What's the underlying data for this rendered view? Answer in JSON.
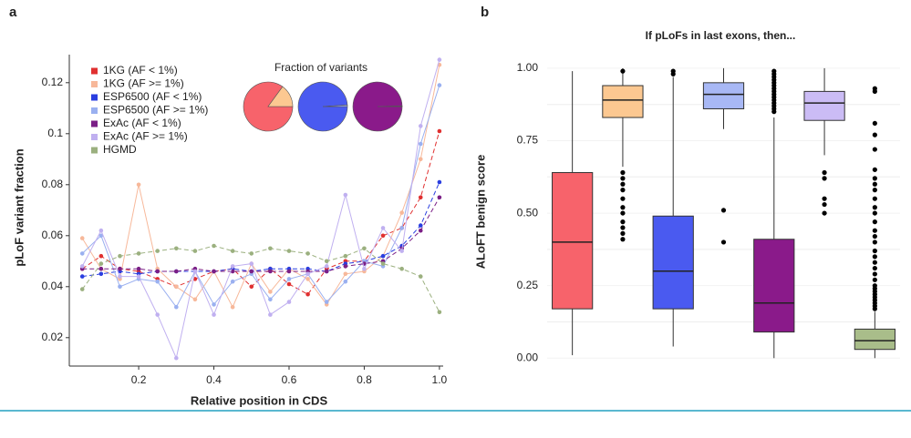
{
  "chart_data": [
    {
      "type": "line",
      "panel": "a",
      "xlabel": "Relative position in CDS",
      "ylabel": "pLoF variant fraction",
      "x": [
        0.05,
        0.1,
        0.15,
        0.2,
        0.25,
        0.3,
        0.35,
        0.4,
        0.45,
        0.5,
        0.55,
        0.6,
        0.65,
        0.7,
        0.75,
        0.8,
        0.85,
        0.9,
        0.95,
        1.0
      ],
      "xlim": [
        0.03,
        1.01
      ],
      "xticks": [
        0.2,
        0.4,
        0.6,
        0.8,
        {
          "value": 1,
          "label": "1.0"
        }
      ],
      "ylim": [
        0.011,
        0.131
      ],
      "yticks": [
        0.02,
        0.04,
        0.06,
        0.08,
        0.1,
        0.12
      ],
      "series": [
        {
          "name": "1KG (AF < 1%)",
          "color": "#e03030",
          "values": [
            0.047,
            0.052,
            0.047,
            0.046,
            0.043,
            0.04,
            0.043,
            0.046,
            0.047,
            0.04,
            0.047,
            0.041,
            0.037,
            0.047,
            0.05,
            0.05,
            0.06,
            0.063,
            0.075,
            0.101
          ]
        },
        {
          "name": "1KG (AF >= 1%)",
          "color": "#f7b89a",
          "values": [
            0.059,
            0.047,
            0.043,
            0.08,
            0.047,
            0.04,
            0.035,
            0.046,
            0.032,
            0.049,
            0.038,
            0.047,
            0.043,
            0.033,
            0.045,
            0.046,
            0.052,
            0.069,
            0.09,
            0.127
          ]
        },
        {
          "name": "ESP6500 (AF < 1%)",
          "color": "#2a3ee0",
          "values": [
            0.044,
            0.045,
            0.046,
            0.045,
            0.046,
            0.046,
            0.046,
            0.046,
            0.047,
            0.046,
            0.047,
            0.047,
            0.047,
            0.046,
            0.049,
            0.05,
            0.052,
            0.056,
            0.064,
            0.081
          ]
        },
        {
          "name": "ESP6500 (AF >= 1%)",
          "color": "#9ab0f0",
          "values": [
            0.053,
            0.06,
            0.04,
            0.043,
            0.042,
            0.032,
            0.046,
            0.033,
            0.042,
            0.045,
            0.035,
            0.043,
            0.045,
            0.034,
            0.042,
            0.05,
            0.048,
            0.063,
            0.096,
            0.119
          ]
        },
        {
          "name": "ExAc (AF < 1%)",
          "color": "#7b1f86",
          "values": [
            0.047,
            0.047,
            0.047,
            0.047,
            0.046,
            0.046,
            0.047,
            0.046,
            0.046,
            0.046,
            0.046,
            0.046,
            0.046,
            0.046,
            0.048,
            0.049,
            0.05,
            0.055,
            0.062,
            0.075
          ]
        },
        {
          "name": "ExAc (AF >= 1%)",
          "color": "#c0b0f0",
          "values": [
            0.048,
            0.062,
            0.044,
            0.044,
            0.029,
            0.012,
            0.046,
            0.029,
            0.048,
            0.049,
            0.029,
            0.034,
            0.045,
            0.048,
            0.076,
            0.047,
            0.063,
            0.054,
            0.103,
            0.129
          ]
        },
        {
          "name": "HGMD",
          "color": "#9bb07f",
          "values": [
            0.039,
            0.049,
            0.052,
            0.053,
            0.054,
            0.055,
            0.054,
            0.056,
            0.054,
            0.053,
            0.055,
            0.054,
            0.053,
            0.05,
            0.052,
            0.055,
            0.049,
            0.047,
            0.044,
            0.03
          ]
        }
      ],
      "inset": {
        "type": "pie",
        "title": "Fraction of variants",
        "pies": [
          {
            "values": [
              85,
              15
            ],
            "colors": [
              "#f7636b",
              "#fcc891"
            ]
          },
          {
            "values": [
              99,
              1
            ],
            "colors": [
              "#4a5af0",
              "#a8b8f5"
            ]
          },
          {
            "values": [
              99.6,
              0.4
            ],
            "colors": [
              "#8a1a8a",
              "#cbbcf5"
            ]
          }
        ]
      }
    },
    {
      "type": "box",
      "panel": "b",
      "title": "If pLoFs in last exons, then...",
      "ylabel": "ALoFT benign score",
      "categories": [
        null,
        null,
        null,
        null,
        null,
        null,
        null
      ],
      "ylim": [
        -0.04,
        1.05
      ],
      "yticks": [
        {
          "value": 0,
          "label": "0.00"
        },
        {
          "value": 0.25,
          "label": "0.25"
        },
        {
          "value": 0.5,
          "label": "0.50"
        },
        {
          "value": 0.75,
          "label": "0.75"
        },
        {
          "value": 1,
          "label": "1.00"
        }
      ],
      "minor_grid": [
        0.125,
        0.375,
        0.625,
        0.875
      ],
      "boxes": [
        {
          "color": "#f7636b",
          "min": 0.01,
          "q1": 0.17,
          "median": 0.4,
          "q3": 0.64,
          "max": 0.99,
          "outliers": []
        },
        {
          "color": "#fcc891",
          "min": 0.66,
          "q1": 0.83,
          "median": 0.89,
          "q3": 0.94,
          "max": 1.0,
          "outliers": [
            0.99,
            0.64,
            0.62,
            0.6,
            0.58,
            0.55,
            0.52,
            0.5,
            0.47,
            0.45,
            0.43,
            0.41
          ]
        },
        {
          "color": "#4a5af0",
          "min": 0.04,
          "q1": 0.17,
          "median": 0.3,
          "q3": 0.49,
          "max": 0.97,
          "outliers": [
            0.99,
            0.98
          ]
        },
        {
          "color": "#a8b8f5",
          "min": 0.79,
          "q1": 0.86,
          "median": 0.91,
          "q3": 0.95,
          "max": 1.0,
          "outliers": [
            0.51,
            0.4
          ]
        },
        {
          "color": "#8a1a8a",
          "min": 0.0,
          "q1": 0.09,
          "median": 0.19,
          "q3": 0.41,
          "max": 0.83,
          "outliers": [
            0.85,
            0.86,
            0.87,
            0.88,
            0.89,
            0.9,
            0.91,
            0.92,
            0.93,
            0.94,
            0.95,
            0.96,
            0.97,
            0.98,
            0.99
          ]
        },
        {
          "color": "#cbbcf5",
          "min": 0.7,
          "q1": 0.82,
          "median": 0.88,
          "q3": 0.92,
          "max": 1.0,
          "outliers": [
            0.64,
            0.62,
            0.55,
            0.53,
            0.5
          ]
        },
        {
          "color": "#a9bd8a",
          "min": 0.0,
          "q1": 0.03,
          "median": 0.06,
          "q3": 0.1,
          "max": 0.16,
          "outliers": [
            0.17,
            0.18,
            0.19,
            0.2,
            0.21,
            0.22,
            0.23,
            0.24,
            0.25,
            0.27,
            0.29,
            0.31,
            0.33,
            0.35,
            0.37,
            0.4,
            0.42,
            0.44,
            0.47,
            0.5,
            0.52,
            0.55,
            0.58,
            0.6,
            0.62,
            0.65,
            0.72,
            0.77,
            0.81,
            0.92,
            0.93
          ]
        }
      ]
    }
  ]
}
